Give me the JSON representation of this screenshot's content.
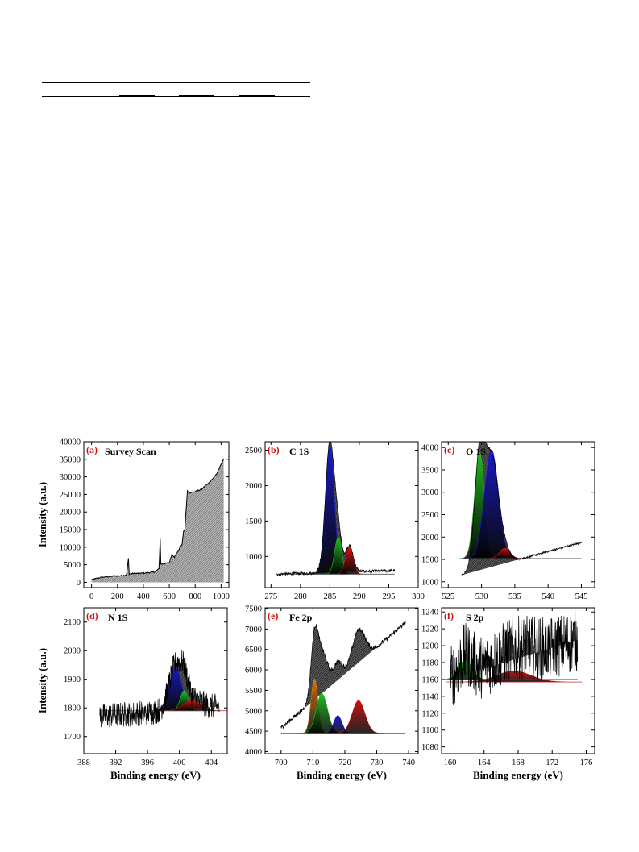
{
  "table_rules": {
    "note": ""
  },
  "chart_data": [
    {
      "panel": "(a)",
      "title": "Survey Scan",
      "type": "area",
      "xlabel": "",
      "ylabel": "Intensity (a.u.)",
      "xlim": [
        -60,
        1060
      ],
      "ylim": [
        -1500,
        40000
      ],
      "xticks": [
        0,
        200,
        400,
        600,
        800,
        1000
      ],
      "yticks": [
        0,
        5000,
        10000,
        15000,
        20000,
        25000,
        30000,
        35000,
        40000
      ],
      "series": [
        {
          "values_xy": [
            [
              0,
              800
            ],
            [
              60,
              1300
            ],
            [
              120,
              1600
            ],
            [
              180,
              1800
            ],
            [
              240,
              1900
            ],
            [
              270,
              2100
            ],
            [
              285,
              6800
            ],
            [
              290,
              2400
            ],
            [
              320,
              2500
            ],
            [
              400,
              2600
            ],
            [
              480,
              2900
            ],
            [
              520,
              3800
            ],
            [
              530,
              12500
            ],
            [
              535,
              5200
            ],
            [
              560,
              5300
            ],
            [
              600,
              5600
            ],
            [
              620,
              8000
            ],
            [
              640,
              7200
            ],
            [
              700,
              11000
            ],
            [
              710,
              14500
            ],
            [
              720,
              15000
            ],
            [
              740,
              26000
            ],
            [
              760,
              25500
            ],
            [
              800,
              25800
            ],
            [
              850,
              26500
            ],
            [
              900,
              28000
            ],
            [
              960,
              30500
            ],
            [
              1000,
              33500
            ],
            [
              1020,
              35000
            ]
          ],
          "style": "grey-hatched"
        }
      ]
    },
    {
      "panel": "(b)",
      "title": "C 1S",
      "type": "area",
      "xlabel": "",
      "ylabel": "",
      "xlim": [
        274,
        300
      ],
      "ylim": [
        560,
        2620
      ],
      "xticks": [
        275,
        280,
        285,
        290,
        295,
        300
      ],
      "yticks": [
        1000,
        1500,
        2000,
        2500
      ],
      "series": [
        {
          "name": "",
          "color": "#1a1acc",
          "peak": {
            "center": 285.0,
            "height": 2580,
            "width": 0.75,
            "base": 750
          }
        },
        {
          "name": "",
          "color": "#1fbf1f",
          "peak": {
            "center": 286.4,
            "height": 1270,
            "width": 0.6,
            "base": 750
          }
        },
        {
          "name": "",
          "color": "#d01010",
          "peak": {
            "center": 288.3,
            "height": 1120,
            "width": 0.65,
            "base": 750
          }
        },
        {
          "name": "",
          "color": "#333333",
          "background": "line",
          "values_xy": [
            [
              276,
              750
            ],
            [
              296,
              800
            ]
          ]
        }
      ]
    },
    {
      "panel": "(c)",
      "title": "O 1S",
      "type": "area",
      "xlabel": "",
      "ylabel": "",
      "xlim": [
        524,
        547
      ],
      "ylim": [
        870,
        4130
      ],
      "xticks": [
        525,
        530,
        535,
        540,
        545
      ],
      "yticks": [
        1000,
        1500,
        2000,
        2500,
        3000,
        3500,
        4000
      ],
      "series": [
        {
          "name": "",
          "color": "#1fbf1f",
          "peak": {
            "center": 529.7,
            "height": 3900,
            "width": 0.75,
            "base": 1520
          }
        },
        {
          "name": "",
          "color": "#1a1acc",
          "peak": {
            "center": 531.5,
            "height": 3950,
            "width": 1.05,
            "base": 1520
          }
        },
        {
          "name": "",
          "color": "#d01010",
          "peak": {
            "center": 533.5,
            "height": 1750,
            "width": 0.8,
            "base": 1520
          }
        },
        {
          "name": "",
          "color": "#333333",
          "background": "line",
          "values_xy": [
            [
              527,
              1150
            ],
            [
              545,
              1880
            ]
          ]
        }
      ]
    },
    {
      "panel": "(d)",
      "title": "N 1S",
      "type": "area",
      "xlabel": "Binding energy (eV)",
      "ylabel": "Intensity (a.u.)",
      "xlim": [
        388,
        406
      ],
      "ylim": [
        1640,
        2150
      ],
      "xticks": [
        388,
        392,
        396,
        400,
        404
      ],
      "yticks": [
        1700,
        1800,
        1900,
        2000,
        2100
      ],
      "series": [
        {
          "name": "",
          "color": "#1a1acc",
          "peak": {
            "center": 399.5,
            "height": 1940,
            "width": 0.8,
            "base": 1790
          }
        },
        {
          "name": "",
          "color": "#1fbf1f",
          "peak": {
            "center": 400.6,
            "height": 1860,
            "width": 0.5,
            "base": 1790
          }
        },
        {
          "name": "",
          "color": "#d01010",
          "peak": {
            "center": 401.6,
            "height": 1825,
            "width": 1.1,
            "base": 1790
          }
        },
        {
          "name": "",
          "color": "#333333",
          "background": "line",
          "values_xy": [
            [
              390,
              1770
            ],
            [
              405,
              1805
            ]
          ]
        }
      ]
    },
    {
      "panel": "(e)",
      "title": "Fe 2p",
      "type": "area",
      "xlabel": "Binding energy (eV)",
      "ylabel": "",
      "xlim": [
        695,
        743
      ],
      "ylim": [
        3950,
        7520
      ],
      "xticks": [
        700,
        710,
        720,
        730,
        740
      ],
      "yticks": [
        4000,
        4500,
        5000,
        5500,
        6000,
        6500,
        7000,
        7500
      ],
      "series": [
        {
          "name": "",
          "color": "#e07a10",
          "peak": {
            "center": 710.5,
            "height": 5780,
            "width": 1.1,
            "base": 4450
          }
        },
        {
          "name": "",
          "color": "#1fbf1f",
          "peak": {
            "center": 712.8,
            "height": 5420,
            "width": 1.8,
            "base": 4450
          }
        },
        {
          "name": "",
          "color": "#1a1acc",
          "peak": {
            "center": 717.8,
            "height": 4880,
            "width": 1.3,
            "base": 4450
          }
        },
        {
          "name": "",
          "color": "#d01010",
          "peak": {
            "center": 724.3,
            "height": 5250,
            "width": 2.0,
            "base": 4450
          }
        },
        {
          "name": "",
          "color": "#333333",
          "background": "line",
          "values_xy": [
            [
              700,
              4580
            ],
            [
              739,
              7150
            ]
          ]
        }
      ]
    },
    {
      "panel": "(f)",
      "title": "S 2p",
      "type": "area",
      "xlabel": "Binding energy (eV)",
      "ylabel": "",
      "xlim": [
        159,
        177
      ],
      "ylim": [
        1072,
        1245
      ],
      "xticks": [
        160,
        164,
        168,
        172,
        176
      ],
      "yticks": [
        1080,
        1100,
        1120,
        1140,
        1160,
        1180,
        1200,
        1220,
        1240
      ],
      "series": [
        {
          "name": "",
          "color": "#1fbf1f",
          "peak": {
            "center": 161.8,
            "height": 1183,
            "width": 0.8,
            "base": 1160
          }
        },
        {
          "name": "",
          "color": "#d01010",
          "peak": {
            "center": 167.5,
            "height": 1170,
            "width": 2.0,
            "base": 1157
          }
        },
        {
          "name": "",
          "color": "#333333",
          "background": "line",
          "values_xy": [
            [
              160,
              1160
            ],
            [
              175,
              1207
            ]
          ]
        }
      ]
    }
  ]
}
